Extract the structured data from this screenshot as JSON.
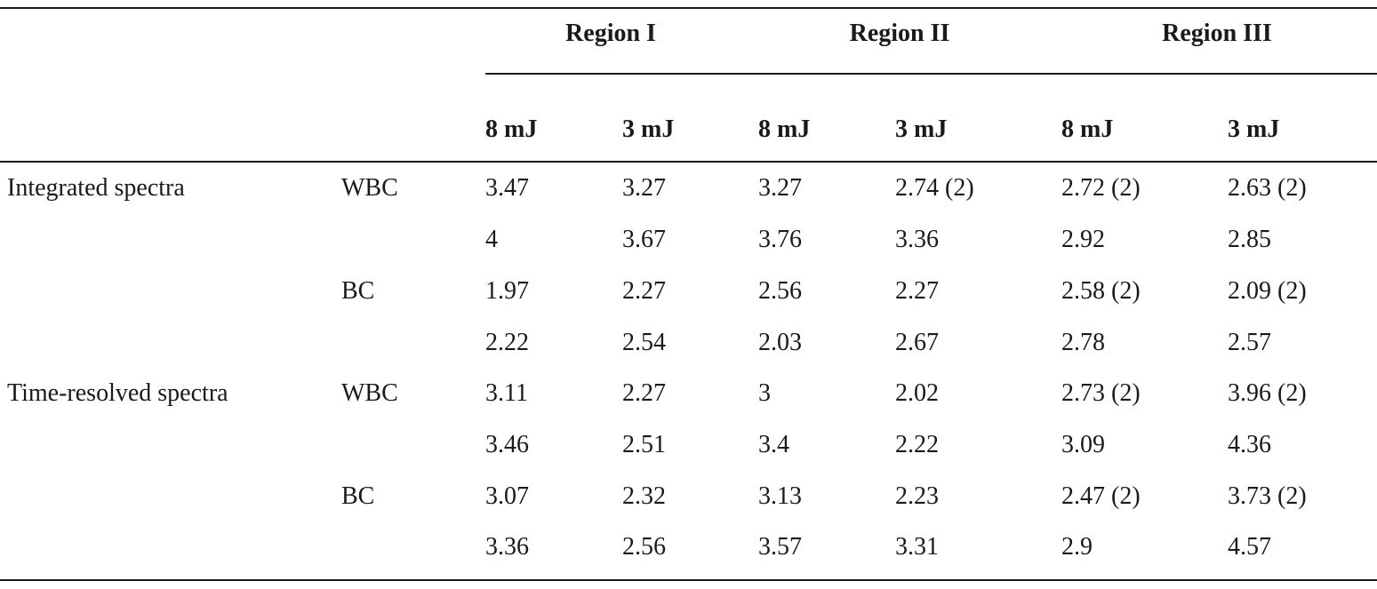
{
  "table": {
    "regions": [
      "Region I",
      "Region II",
      "Region III"
    ],
    "energies": [
      "8 mJ",
      "3 mJ",
      "8 mJ",
      "3 mJ",
      "8 mJ",
      "3 mJ"
    ],
    "rows": [
      {
        "label": "Integrated spectra",
        "type": "WBC",
        "values": [
          "3.47",
          "3.27",
          "3.27",
          "2.74 (2)",
          "2.72 (2)",
          "2.63 (2)"
        ]
      },
      {
        "label": "",
        "type": "",
        "values": [
          "4",
          "3.67",
          "3.76",
          "3.36",
          "2.92",
          "2.85"
        ]
      },
      {
        "label": "",
        "type": "BC",
        "values": [
          "1.97",
          "2.27",
          "2.56",
          "2.27",
          "2.58 (2)",
          "2.09 (2)"
        ]
      },
      {
        "label": "",
        "type": "",
        "values": [
          "2.22",
          "2.54",
          "2.03",
          "2.67",
          "2.78",
          "2.57"
        ]
      },
      {
        "label": "Time-resolved spectra",
        "type": "WBC",
        "values": [
          "3.11",
          "2.27",
          "3",
          "2.02",
          "2.73 (2)",
          "3.96 (2)"
        ]
      },
      {
        "label": "",
        "type": "",
        "values": [
          "3.46",
          "2.51",
          "3.4",
          "2.22",
          "3.09",
          "4.36"
        ]
      },
      {
        "label": "",
        "type": "BC",
        "values": [
          "3.07",
          "2.32",
          "3.13",
          "2.23",
          "2.47 (2)",
          "3.73 (2)"
        ]
      },
      {
        "label": "",
        "type": "",
        "values": [
          "3.36",
          "2.56",
          "3.57",
          "3.31",
          "2.9",
          "4.57"
        ]
      }
    ]
  }
}
